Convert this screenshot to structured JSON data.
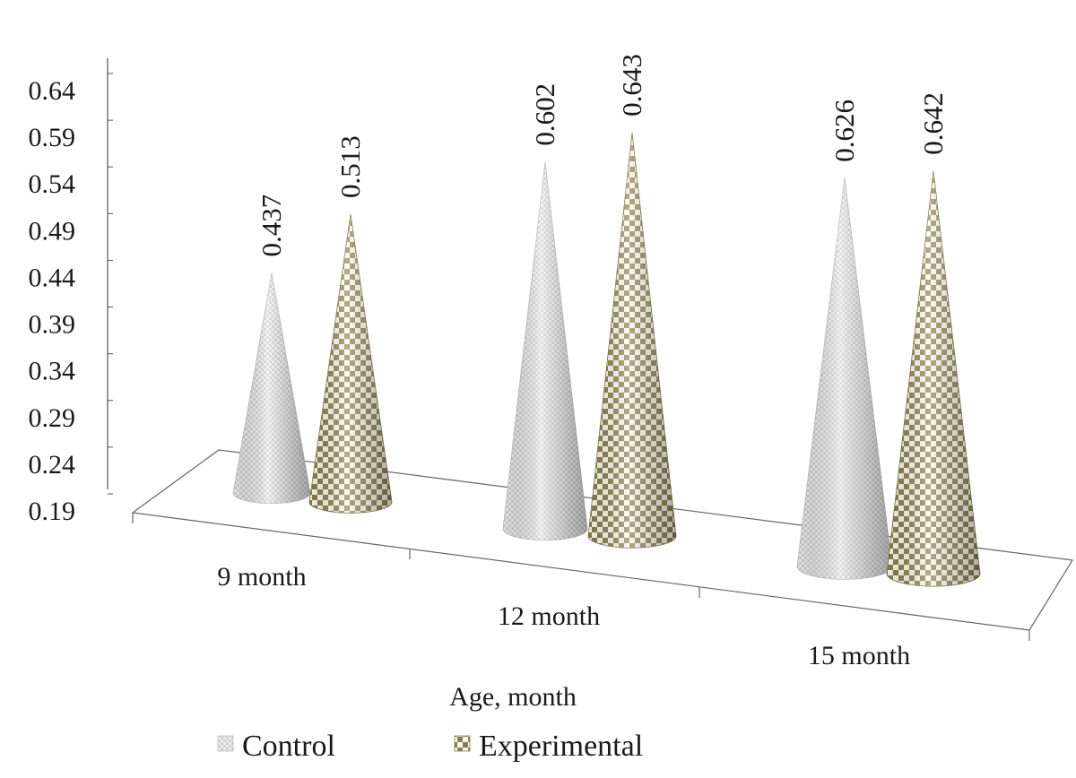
{
  "chart_data": {
    "type": "bar",
    "style": "3d-cone",
    "title": "",
    "xlabel": "Age, month",
    "ylabel": "",
    "categories": [
      "9 month",
      "12 month",
      "15 month"
    ],
    "series": [
      {
        "name": "Control",
        "values": [
          0.437,
          0.602,
          0.626
        ],
        "color": "#d9d9d9",
        "pattern": "fine-grid"
      },
      {
        "name": "Experimental",
        "values": [
          0.513,
          0.643,
          0.642
        ],
        "color": "#a89a5a",
        "pattern": "checkerboard"
      }
    ],
    "data_labels": [
      [
        "0.437",
        "0.602",
        "0.626"
      ],
      [
        "0.513",
        "0.643",
        "0.642"
      ]
    ],
    "yticks": [
      "0.19",
      "0.24",
      "0.29",
      "0.34",
      "0.39",
      "0.44",
      "0.49",
      "0.54",
      "0.59",
      "0.64"
    ],
    "ylim": [
      0.19,
      0.64
    ],
    "grid": false,
    "legend": {
      "position": "bottom",
      "entries": [
        "Control",
        "Experimental"
      ]
    }
  }
}
